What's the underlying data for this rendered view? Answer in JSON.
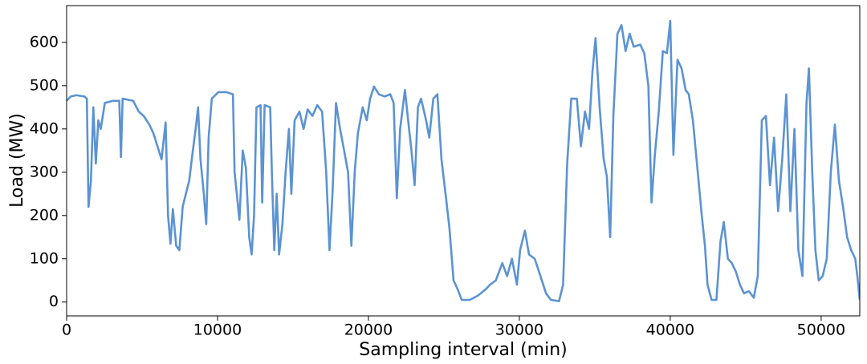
{
  "chart_data": {
    "type": "line",
    "xlabel": "Sampling interval (min)",
    "ylabel": "Load (MW)",
    "x": [
      0,
      270,
      645,
      1180,
      1340,
      1450,
      1610,
      1770,
      1935,
      2100,
      2260,
      2530,
      3060,
      3490,
      3600,
      3710,
      4410,
      4780,
      5110,
      5480,
      5750,
      6020,
      6290,
      6560,
      6720,
      6880,
      7040,
      7260,
      7470,
      7690,
      7900,
      8120,
      8330,
      8550,
      8710,
      8870,
      9090,
      9250,
      9410,
      9620,
      10050,
      10590,
      11020,
      11130,
      11450,
      11670,
      11880,
      12100,
      12260,
      12420,
      12580,
      12850,
      12960,
      13120,
      13490,
      13600,
      13760,
      13920,
      14080,
      14300,
      14510,
      14730,
      14890,
      15110,
      15430,
      15700,
      15970,
      16290,
      16610,
      16930,
      17200,
      17420,
      17630,
      17850,
      18120,
      18390,
      18650,
      18870,
      19090,
      19300,
      19620,
      19890,
      20110,
      20370,
      20700,
      21070,
      21450,
      21670,
      21880,
      22100,
      22420,
      22630,
      22850,
      23060,
      23280,
      23490,
      23820,
      24030,
      24300,
      24570,
      24840,
      25110,
      25370,
      25640,
      25910,
      26180,
      26720,
      27260,
      27790,
      28060,
      28440,
      28870,
      29190,
      29510,
      29840,
      30050,
      30370,
      30640,
      31020,
      31400,
      31770,
      32090,
      32630,
      32900,
      33170,
      33440,
      33810,
      34080,
      34350,
      34620,
      34840,
      35050,
      35320,
      35590,
      35800,
      36020,
      36230,
      36500,
      36770,
      37040,
      37310,
      37580,
      38010,
      38280,
      38550,
      38760,
      38980,
      39240,
      39510,
      39780,
      40000,
      40210,
      40480,
      40750,
      41020,
      41230,
      41500,
      41770,
      42090,
      42300,
      42470,
      42740,
      43060,
      43330,
      43550,
      43820,
      44080,
      44350,
      44620,
      44890,
      45210,
      45540,
      45800,
      46070,
      46340,
      46610,
      46880,
      47150,
      47420,
      47690,
      47960,
      48230,
      48490,
      48760,
      49030,
      49190,
      49410,
      49620,
      49840,
      50100,
      50370,
      50640,
      50910,
      51180,
      51450,
      51720,
      51990,
      52260,
      52400,
      52560
    ],
    "series": [
      {
        "color": "#5b93d3",
        "values": [
          465,
          475,
          478,
          475,
          470,
          220,
          280,
          450,
          320,
          420,
          400,
          460,
          465,
          465,
          335,
          470,
          465,
          440,
          430,
          410,
          390,
          360,
          330,
          415,
          200,
          135,
          215,
          130,
          120,
          220,
          250,
          280,
          340,
          400,
          450,
          330,
          250,
          180,
          380,
          470,
          485,
          485,
          480,
          300,
          190,
          350,
          310,
          150,
          110,
          200,
          450,
          455,
          230,
          455,
          450,
          300,
          120,
          250,
          110,
          180,
          300,
          400,
          250,
          420,
          440,
          400,
          445,
          430,
          455,
          440,
          300,
          120,
          260,
          460,
          400,
          350,
          300,
          130,
          300,
          390,
          450,
          420,
          470,
          498,
          480,
          475,
          480,
          460,
          240,
          400,
          490,
          420,
          350,
          270,
          450,
          470,
          420,
          380,
          470,
          480,
          330,
          250,
          170,
          50,
          30,
          5,
          5,
          15,
          30,
          40,
          50,
          90,
          60,
          100,
          40,
          120,
          165,
          110,
          100,
          60,
          20,
          5,
          2,
          40,
          320,
          470,
          470,
          360,
          440,
          400,
          530,
          610,
          450,
          330,
          290,
          150,
          430,
          620,
          640,
          580,
          620,
          590,
          595,
          575,
          500,
          230,
          340,
          440,
          580,
          575,
          650,
          340,
          560,
          540,
          490,
          480,
          420,
          320,
          200,
          130,
          40,
          5,
          5,
          140,
          185,
          100,
          90,
          70,
          40,
          20,
          25,
          10,
          60,
          420,
          430,
          270,
          380,
          210,
          330,
          480,
          210,
          400,
          120,
          60,
          460,
          540,
          300,
          120,
          50,
          60,
          100,
          300,
          410,
          280,
          220,
          150,
          120,
          100,
          60,
          5
        ]
      }
    ],
    "xlim": [
      0,
      52560
    ],
    "ylim": [
      -32,
      685
    ],
    "xticks": [
      0,
      10000,
      20000,
      30000,
      40000,
      50000
    ],
    "yticks": [
      0,
      100,
      200,
      300,
      400,
      500,
      600
    ],
    "grid": false
  }
}
